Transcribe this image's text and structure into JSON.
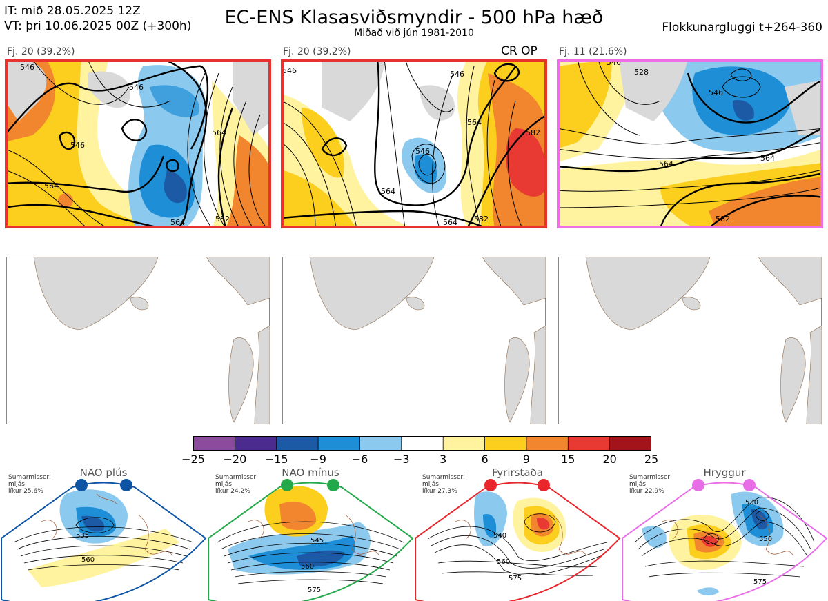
{
  "header": {
    "it_line": "IT: mið 28.05.2025 12Z",
    "vt_line": "VT: þri 10.06.2025 00Z  (+300h)",
    "title": "EC-ENS Klasasviðsmyndir - 500 hPa hæð",
    "subtitle": "Miðað við jún 1981-2010",
    "window": "Flokkunargluggi t+264-360"
  },
  "clusters": [
    {
      "label": "Fj. 20 (39.2%)",
      "border_color": "#e8322e",
      "extra": "",
      "contours": [
        "546",
        "564",
        "546",
        "546",
        "564",
        "564",
        "582"
      ]
    },
    {
      "label": "Fj. 20 (39.2%)",
      "border_color": "#e8322e",
      "extra": "CR OP",
      "contours": [
        "546",
        "564",
        "564",
        "546",
        "582",
        "546",
        "564",
        "582"
      ]
    },
    {
      "label": "Fj. 11 (21.6%)",
      "border_color": "#ee6ee8",
      "extra": "",
      "contours": [
        "528",
        "546",
        "564",
        "564",
        "582",
        "546"
      ]
    }
  ],
  "colorbar": {
    "labels": [
      "−25",
      "−20",
      "−15",
      "−9",
      "−6",
      "−3",
      "3",
      "6",
      "9",
      "15",
      "20",
      "25"
    ],
    "colors": [
      "#8c4b9c",
      "#4b2c8e",
      "#1d5aa5",
      "#1e8fd6",
      "#8cc9ee",
      "#ffffff",
      "#fff3a0",
      "#fccf1e",
      "#f2862f",
      "#e83a33",
      "#a3131a"
    ]
  },
  "regimes": [
    {
      "title": "NAO plús",
      "info": [
        "Sumarmisseri",
        "mijás",
        "líkur 25,6%"
      ],
      "color": "#0e54a5",
      "contours": [
        "535",
        "560"
      ]
    },
    {
      "title": "NAO mínus",
      "info": [
        "Sumarmisseri",
        "mijás",
        "líkur 24,2%"
      ],
      "color": "#24a94a",
      "contours": [
        "545",
        "560",
        "575"
      ]
    },
    {
      "title": "Fyrirstaða",
      "info": [
        "Sumarmisseri",
        "mijás",
        "líkur 27,3%"
      ],
      "color": "#e8262c",
      "contours": [
        "540",
        "560",
        "575"
      ]
    },
    {
      "title": "Hryggur",
      "info": [
        "Sumarmisseri",
        "mijás",
        "líkur 22,9%"
      ],
      "color": "#e86ee8",
      "contours": [
        "530",
        "550",
        "575"
      ]
    }
  ]
}
